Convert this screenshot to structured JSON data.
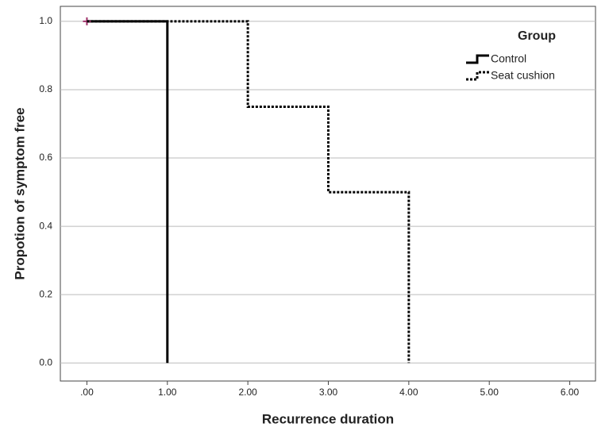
{
  "chart_data": {
    "type": "step",
    "x_label": "Recurrence duration",
    "y_label": "Propotion of symptom free",
    "legend_title": "Group",
    "legend_position": "top-right",
    "grid": true,
    "xlim": [
      -0.33,
      6.32
    ],
    "ylim": [
      -0.053,
      1.044
    ],
    "xticks": [
      {
        "value": 0,
        "label": ".00"
      },
      {
        "value": 1,
        "label": "1.00"
      },
      {
        "value": 2,
        "label": "2.00"
      },
      {
        "value": 3,
        "label": "3.00"
      },
      {
        "value": 4,
        "label": "4.00"
      },
      {
        "value": 5,
        "label": "5.00"
      },
      {
        "value": 6,
        "label": "6.00"
      }
    ],
    "yticks": [
      {
        "value": 0,
        "label": "0.0"
      },
      {
        "value": 0.2,
        "label": "0.2"
      },
      {
        "value": 0.4,
        "label": "0.4"
      },
      {
        "value": 0.6,
        "label": "0.6"
      },
      {
        "value": 0.8,
        "label": "0.8"
      },
      {
        "value": 1,
        "label": "1.0"
      }
    ],
    "series": [
      {
        "name": "Control",
        "color": "#000000",
        "line_style": "solid",
        "x": [
          0,
          1
        ],
        "values": [
          1,
          0
        ],
        "censored": {
          "x": [
            0
          ],
          "values": [
            1
          ],
          "color": "#a0306a"
        }
      },
      {
        "name": "Seat cushion",
        "color": "#000000",
        "line_style": "dotted",
        "x": [
          0,
          2,
          3,
          4
        ],
        "values": [
          1,
          0.75,
          0.5,
          0
        ]
      }
    ]
  }
}
